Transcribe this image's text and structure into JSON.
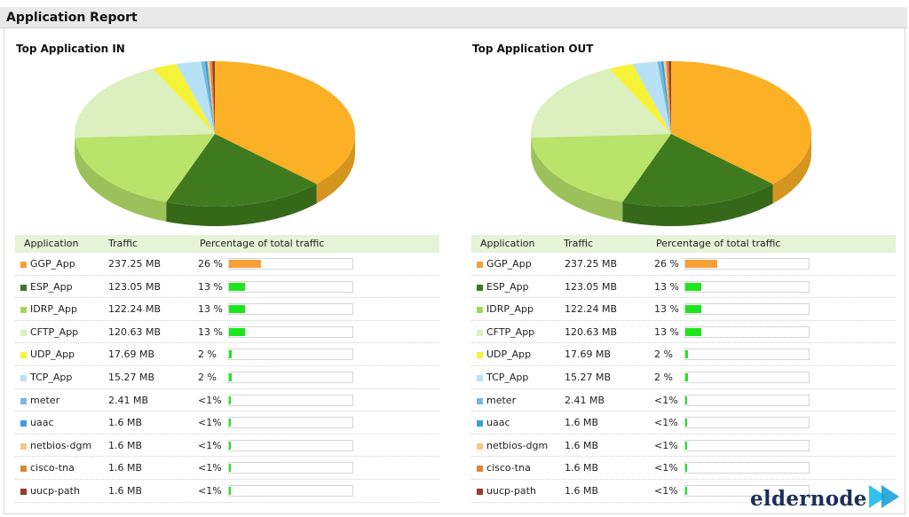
{
  "report": {
    "title": "Application Report"
  },
  "columns": {
    "application": "Application",
    "traffic": "Traffic",
    "percentage": "Percentage of total traffic"
  },
  "panels": [
    {
      "title": "Top Application IN"
    },
    {
      "title": "Top Application OUT"
    }
  ],
  "rows": [
    {
      "name": "GGP_App",
      "traffic": "237.25 MB",
      "pct_text": "26 %",
      "share": 26,
      "color": "#f4a036"
    },
    {
      "name": "ESP_App",
      "traffic": "123.05 MB",
      "pct_text": "13 %",
      "share": 13,
      "color": "#3f7a1e"
    },
    {
      "name": "IDRP_App",
      "traffic": "122.24 MB",
      "pct_text": "13 %",
      "share": 13,
      "color": "#a7d55a"
    },
    {
      "name": "CFTP_App",
      "traffic": "120.63 MB",
      "pct_text": "13 %",
      "share": 13,
      "color": "#dbefbf"
    },
    {
      "name": "UDP_App",
      "traffic": "17.69 MB",
      "pct_text": "2 %",
      "share": 2,
      "color": "#f6f338"
    },
    {
      "name": "TCP_App",
      "traffic": "15.27 MB",
      "pct_text": "2 %",
      "share": 2,
      "color": "#b7e2f6"
    },
    {
      "name": "meter",
      "traffic": "2.41 MB",
      "pct_text": "<1%",
      "share": 0.3,
      "color": "#78b8dd"
    },
    {
      "name": "uaac",
      "traffic": "1.6 MB",
      "pct_text": "<1%",
      "share": 0.2,
      "color": "#3d9fd8"
    },
    {
      "name": "netbios-dgm",
      "traffic": "1.6 MB",
      "pct_text": "<1%",
      "share": 0.2,
      "color": "#f2c88a"
    },
    {
      "name": "cisco-tna",
      "traffic": "1.6 MB",
      "pct_text": "<1%",
      "share": 0.2,
      "color": "#e08634"
    },
    {
      "name": "uucp-path",
      "traffic": "1.6 MB",
      "pct_text": "<1%",
      "share": 0.2,
      "color": "#9a3a2f"
    }
  ],
  "style": {
    "bar_color_large": "#f4a036",
    "bar_color_small": "#1ee61e",
    "pie_colors": [
      "#fbb025",
      "#3f7a1e",
      "#b9e36a",
      "#dbefbf",
      "#f6f338",
      "#b7e2f6",
      "#78b8dd",
      "#3d9fd8",
      "#f2c88a",
      "#e08634",
      "#9a3a2f"
    ]
  },
  "logo": {
    "text": "eldernode",
    "icon": "play-arrows-icon"
  }
}
